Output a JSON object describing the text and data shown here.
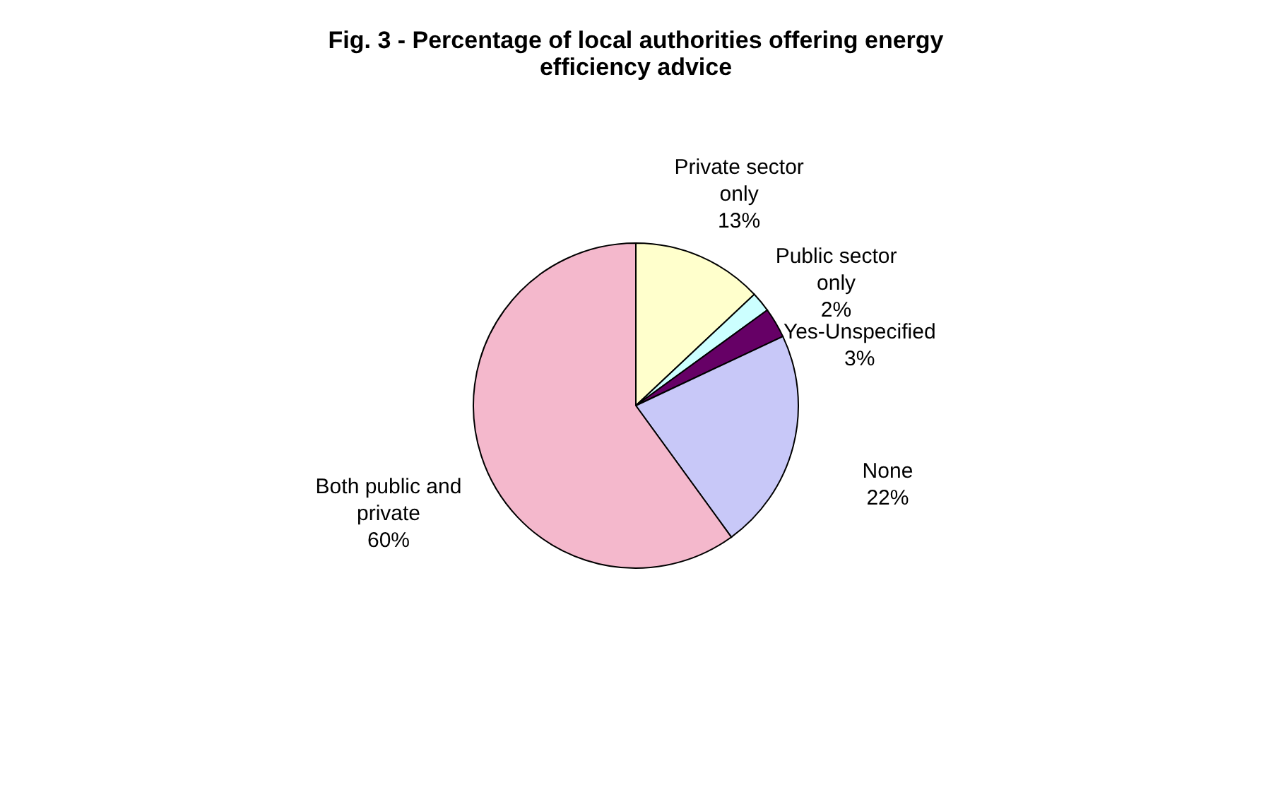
{
  "chart_data": {
    "type": "pie",
    "title": "Fig. 3 - Percentage of local authorities offering energy efficiency advice",
    "categories": [
      "Private sector only",
      "Public sector only",
      "Yes-Unspecified",
      "None",
      "Both public and private"
    ],
    "values": [
      13,
      2,
      3,
      22,
      60
    ],
    "value_labels": [
      "13%",
      "2%",
      "3%",
      "22%",
      "60%"
    ],
    "colors": [
      "#ffffcc",
      "#ccffff",
      "#660066",
      "#c8c8f8",
      "#f4b8cc"
    ],
    "legend": false
  }
}
